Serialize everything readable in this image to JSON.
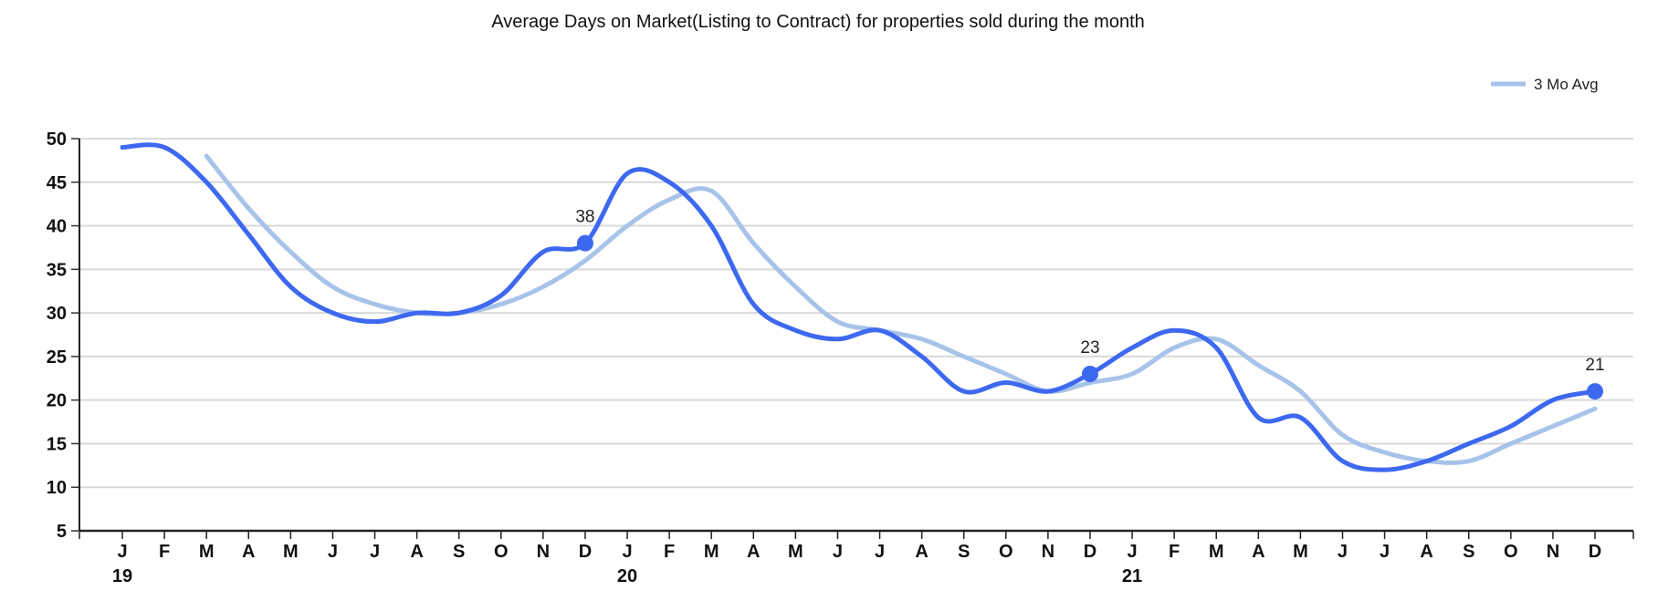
{
  "chart_data": {
    "type": "line",
    "title": "Average Days on Market(Listing to Contract) for properties sold during the month",
    "xlabel": "",
    "ylabel": "",
    "ylim": [
      5,
      50
    ],
    "yticks": [
      "5",
      "10",
      "15",
      "20",
      "25",
      "30",
      "35",
      "40",
      "45",
      "50"
    ],
    "grid": true,
    "legend_position": "top-right",
    "x": [
      "J",
      "F",
      "M",
      "A",
      "M",
      "J",
      "J",
      "A",
      "S",
      "O",
      "N",
      "D",
      "J",
      "F",
      "M",
      "A",
      "M",
      "J",
      "J",
      "A",
      "S",
      "O",
      "N",
      "D",
      "J",
      "F",
      "M",
      "A",
      "M",
      "J",
      "J",
      "A",
      "S",
      "O",
      "N",
      "D"
    ],
    "year_labels": [
      {
        "index": 0,
        "label": "19"
      },
      {
        "index": 12,
        "label": "20"
      },
      {
        "index": 24,
        "label": "21"
      }
    ],
    "series": [
      {
        "name": "Days on Market",
        "color": "#3d68f0",
        "in_legend": false,
        "values": [
          49,
          49,
          45,
          39,
          33,
          30,
          29,
          30,
          30,
          32,
          37,
          38,
          46,
          45,
          40,
          31,
          28,
          27,
          28,
          25,
          21,
          22,
          21,
          23,
          26,
          28,
          26,
          18,
          18,
          13,
          12,
          13,
          15,
          17,
          20,
          21
        ],
        "labels": [
          {
            "index": 11,
            "text": "38"
          },
          {
            "index": 23,
            "text": "23"
          },
          {
            "index": 35,
            "text": "21"
          }
        ]
      },
      {
        "name": "3 Mo Avg",
        "color": "#a7c3ea",
        "in_legend": true,
        "values": [
          null,
          null,
          48,
          42,
          37,
          33,
          31,
          30,
          30,
          31,
          33,
          36,
          40,
          43,
          44,
          38,
          33,
          29,
          28,
          27,
          25,
          23,
          21,
          22,
          23,
          26,
          27,
          24,
          21,
          16,
          14,
          13,
          13,
          15,
          17,
          19
        ]
      }
    ]
  }
}
